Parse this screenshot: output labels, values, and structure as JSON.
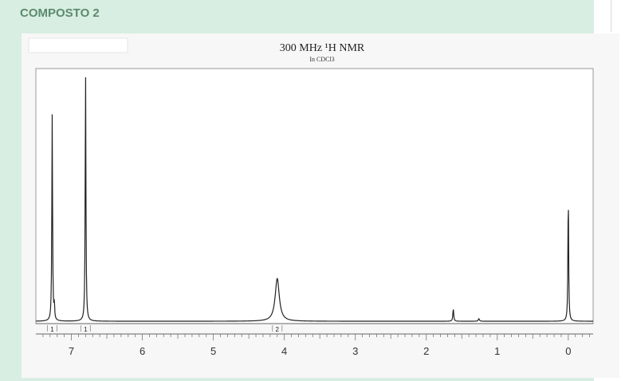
{
  "section": {
    "heading": "COMPOSTO 2"
  },
  "chart_data": {
    "type": "line",
    "title": "300 MHz ¹H NMR",
    "subtitle": "In CDCl3",
    "xlabel": "",
    "ylabel": "",
    "x_axis_reversed": true,
    "xlim": [
      7.5,
      -0.35
    ],
    "ylim": [
      0,
      1
    ],
    "x_ticks": [
      7,
      6,
      5,
      4,
      3,
      2,
      1,
      0
    ],
    "x_tick_labels": [
      "7",
      "6",
      "5",
      "4",
      "3",
      "2",
      "1",
      "0"
    ],
    "grid": false,
    "series": [
      {
        "peaks": [
          {
            "shift": 7.27,
            "height": 0.82,
            "width": 0.006
          },
          {
            "shift": 7.24,
            "height": 0.06,
            "width": 0.005
          },
          {
            "shift": 6.8,
            "height": 0.99,
            "width": 0.006
          },
          {
            "shift": 4.1,
            "height": 0.17,
            "width": 0.035
          },
          {
            "shift": 1.62,
            "height": 0.05,
            "width": 0.007
          },
          {
            "shift": 1.26,
            "height": 0.01,
            "width": 0.01
          },
          {
            "shift": 0.0,
            "height": 0.51,
            "width": 0.006
          }
        ]
      }
    ],
    "integrals": [
      {
        "shift": 7.27,
        "label": "1"
      },
      {
        "shift": 6.8,
        "label": "1"
      },
      {
        "shift": 4.1,
        "label": "2"
      }
    ]
  }
}
